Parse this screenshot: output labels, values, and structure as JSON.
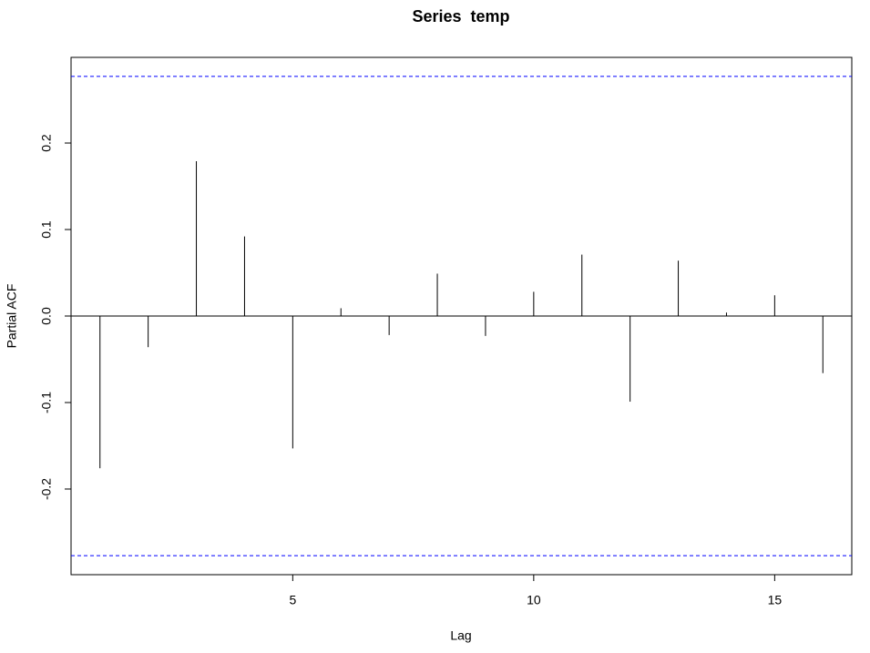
{
  "chart_data": {
    "type": "pacf",
    "title": "Series  temp",
    "x_label": "Lag",
    "y_label": "Partial ACF",
    "x": [
      1,
      2,
      3,
      4,
      5,
      6,
      7,
      8,
      9,
      10,
      11,
      12,
      13,
      14,
      15,
      16
    ],
    "values": [
      -0.176,
      -0.036,
      0.179,
      0.092,
      -0.153,
      0.009,
      -0.022,
      0.049,
      -0.023,
      0.028,
      0.071,
      -0.099,
      0.064,
      0.004,
      0.024,
      -0.066
    ],
    "color": "#000000",
    "ci_lines": [
      0.277,
      -0.277
    ],
    "ci_color": "#0000ff",
    "xlim": [
      0.4,
      16.6
    ],
    "xticks": [
      5,
      10,
      15
    ],
    "ylim": [
      -0.299,
      0.299
    ],
    "yticks": [
      -0.2,
      -0.1,
      {
        "value": 0,
        "label": "0.0"
      },
      0.1,
      0.2
    ]
  }
}
